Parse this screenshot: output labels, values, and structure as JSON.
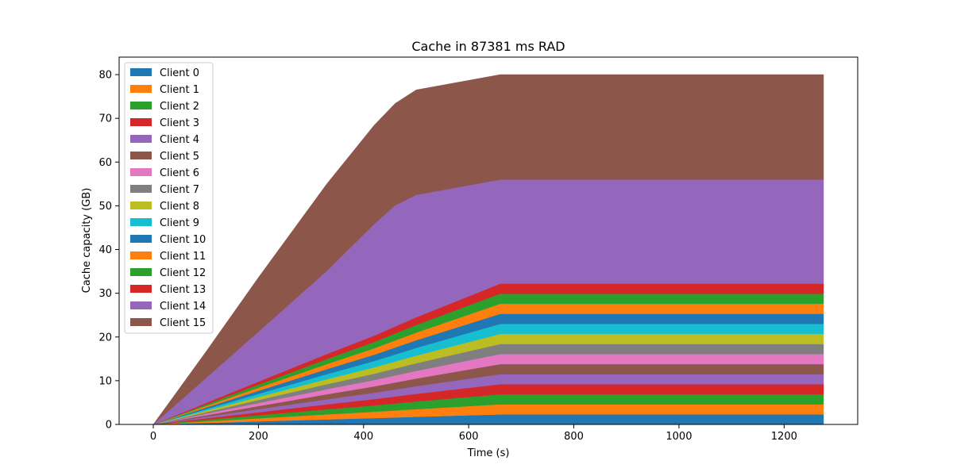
{
  "chart_data": {
    "type": "area",
    "stacked": true,
    "title": "Cache in  87381 ms RAD",
    "xlabel": "Time (s)",
    "ylabel": "Cache capacity (GB)",
    "xlim": [
      -65,
      1340
    ],
    "ylim": [
      0,
      84
    ],
    "xticks": [
      0,
      200,
      400,
      600,
      800,
      1000,
      1200
    ],
    "yticks": [
      0,
      10,
      20,
      30,
      40,
      50,
      60,
      70,
      80
    ],
    "grid": false,
    "legend_position": "top-left",
    "x": [
      0,
      100,
      200,
      330,
      420,
      460,
      500,
      660,
      1275
    ],
    "series": [
      {
        "name": "Client 0",
        "color": "#1f77b4",
        "values": [
          0,
          0.35,
          0.7,
          1.15,
          1.45,
          1.6,
          1.75,
          2.3,
          2.3
        ]
      },
      {
        "name": "Client 1",
        "color": "#ff7f0e",
        "values": [
          0,
          0.35,
          0.7,
          1.15,
          1.45,
          1.6,
          1.75,
          2.3,
          2.3
        ]
      },
      {
        "name": "Client 2",
        "color": "#2ca02c",
        "values": [
          0,
          0.35,
          0.7,
          1.15,
          1.45,
          1.6,
          1.75,
          2.3,
          2.3
        ]
      },
      {
        "name": "Client 3",
        "color": "#d62728",
        "values": [
          0,
          0.35,
          0.7,
          1.15,
          1.45,
          1.6,
          1.75,
          2.3,
          2.3
        ]
      },
      {
        "name": "Client 4",
        "color": "#9467bd",
        "values": [
          0,
          0.35,
          0.7,
          1.15,
          1.45,
          1.6,
          1.75,
          2.3,
          2.3
        ]
      },
      {
        "name": "Client 5",
        "color": "#8c564b",
        "values": [
          0,
          0.35,
          0.7,
          1.15,
          1.45,
          1.6,
          1.75,
          2.3,
          2.3
        ]
      },
      {
        "name": "Client 6",
        "color": "#e377c2",
        "values": [
          0,
          0.35,
          0.7,
          1.15,
          1.45,
          1.6,
          1.75,
          2.3,
          2.3
        ]
      },
      {
        "name": "Client 7",
        "color": "#7f7f7f",
        "values": [
          0,
          0.35,
          0.7,
          1.15,
          1.45,
          1.6,
          1.75,
          2.3,
          2.3
        ]
      },
      {
        "name": "Client 8",
        "color": "#bcbd22",
        "values": [
          0,
          0.35,
          0.7,
          1.15,
          1.45,
          1.6,
          1.75,
          2.3,
          2.3
        ]
      },
      {
        "name": "Client 9",
        "color": "#17becf",
        "values": [
          0,
          0.35,
          0.7,
          1.15,
          1.45,
          1.6,
          1.75,
          2.3,
          2.3
        ]
      },
      {
        "name": "Client 10",
        "color": "#1f77b4",
        "values": [
          0,
          0.35,
          0.7,
          1.15,
          1.45,
          1.6,
          1.75,
          2.3,
          2.3
        ]
      },
      {
        "name": "Client 11",
        "color": "#ff7f0e",
        "values": [
          0,
          0.35,
          0.7,
          1.15,
          1.45,
          1.6,
          1.75,
          2.3,
          2.3
        ]
      },
      {
        "name": "Client 12",
        "color": "#2ca02c",
        "values": [
          0,
          0.35,
          0.7,
          1.15,
          1.45,
          1.6,
          1.75,
          2.3,
          2.3
        ]
      },
      {
        "name": "Client 13",
        "color": "#d62728",
        "values": [
          0,
          0.35,
          0.7,
          1.15,
          1.45,
          1.6,
          1.75,
          2.3,
          2.3
        ]
      },
      {
        "name": "Client 14",
        "color": "#9467bd",
        "values": [
          0,
          5.7,
          11.4,
          19.0,
          25.5,
          27.7,
          28.0,
          23.8,
          23.8
        ]
      },
      {
        "name": "Client 15",
        "color": "#8c564b",
        "values": [
          0,
          6.0,
          12.4,
          19.9,
          22.6,
          23.3,
          24.0,
          24.0,
          24.0
        ]
      }
    ]
  }
}
